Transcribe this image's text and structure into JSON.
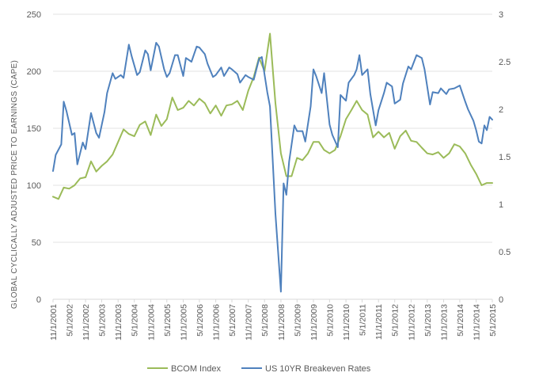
{
  "chart_data": {
    "type": "line",
    "ylabel": "GLOBAL CYCLICALLY ADJUSTED PRICE TO EARNINGS (CAPE)",
    "ylim": [
      0,
      250
    ],
    "y_ticks": [
      "0",
      "50",
      "100",
      "150",
      "200",
      "250"
    ],
    "y2lim": [
      0,
      3
    ],
    "y2_ticks": [
      "0",
      "0.5",
      "1",
      "1.5",
      "2",
      "2.5",
      "3"
    ],
    "x_range": [
      "2001-11-01",
      "2015-05-01"
    ],
    "x_tick_labels": [
      "11/1/2001",
      "5/1/2002",
      "11/1/2002",
      "5/1/2003",
      "11/1/2003",
      "5/1/2004",
      "11/1/2004",
      "5/1/2005",
      "11/1/2005",
      "5/1/2006",
      "11/1/2006",
      "5/1/2007",
      "11/1/2007",
      "5/1/2008",
      "11/1/2008",
      "5/1/2009",
      "11/1/2009",
      "5/1/2010",
      "11/1/2010",
      "5/1/2011",
      "11/1/2011",
      "5/1/2012",
      "11/1/2012",
      "5/1/2013",
      "11/1/2013",
      "5/1/2014",
      "11/1/2014",
      "5/1/2015"
    ],
    "grid": true,
    "legend_position": "bottom",
    "series": [
      {
        "name": "BCOM Index",
        "axis": "left",
        "color": "#9bbb59",
        "points": [
          [
            "2001-11-01",
            90
          ],
          [
            "2002-01-01",
            88
          ],
          [
            "2002-03-01",
            98
          ],
          [
            "2002-05-01",
            97
          ],
          [
            "2002-07-01",
            100
          ],
          [
            "2002-09-01",
            106
          ],
          [
            "2002-11-01",
            107
          ],
          [
            "2003-01-01",
            121
          ],
          [
            "2003-03-01",
            112
          ],
          [
            "2003-05-01",
            117
          ],
          [
            "2003-07-01",
            121
          ],
          [
            "2003-09-01",
            127
          ],
          [
            "2003-11-01",
            138
          ],
          [
            "2004-01-01",
            149
          ],
          [
            "2004-03-01",
            145
          ],
          [
            "2004-05-01",
            143
          ],
          [
            "2004-07-01",
            153
          ],
          [
            "2004-09-01",
            156
          ],
          [
            "2004-11-01",
            144
          ],
          [
            "2005-01-01",
            162
          ],
          [
            "2005-03-01",
            152
          ],
          [
            "2005-05-01",
            158
          ],
          [
            "2005-07-01",
            177
          ],
          [
            "2005-09-01",
            166
          ],
          [
            "2005-11-01",
            168
          ],
          [
            "2006-01-01",
            174
          ],
          [
            "2006-03-01",
            170
          ],
          [
            "2006-05-01",
            176
          ],
          [
            "2006-07-01",
            172
          ],
          [
            "2006-09-01",
            163
          ],
          [
            "2006-11-01",
            170
          ],
          [
            "2007-01-01",
            161
          ],
          [
            "2007-03-01",
            170
          ],
          [
            "2007-05-01",
            171
          ],
          [
            "2007-07-01",
            174
          ],
          [
            "2007-09-01",
            166
          ],
          [
            "2007-11-01",
            183
          ],
          [
            "2008-01-01",
            195
          ],
          [
            "2008-03-01",
            212
          ],
          [
            "2008-05-01",
            200
          ],
          [
            "2008-07-01",
            233
          ],
          [
            "2008-09-01",
            172
          ],
          [
            "2008-11-01",
            128
          ],
          [
            "2009-01-01",
            108
          ],
          [
            "2009-03-01",
            108
          ],
          [
            "2009-05-01",
            124
          ],
          [
            "2009-07-01",
            122
          ],
          [
            "2009-09-01",
            128
          ],
          [
            "2009-11-01",
            138
          ],
          [
            "2010-01-01",
            138
          ],
          [
            "2010-03-01",
            131
          ],
          [
            "2010-05-01",
            128
          ],
          [
            "2010-07-01",
            131
          ],
          [
            "2010-09-01",
            143
          ],
          [
            "2010-11-01",
            158
          ],
          [
            "2011-01-01",
            166
          ],
          [
            "2011-03-01",
            174
          ],
          [
            "2011-05-01",
            166
          ],
          [
            "2011-07-01",
            162
          ],
          [
            "2011-09-01",
            142
          ],
          [
            "2011-11-01",
            147
          ],
          [
            "2012-01-01",
            142
          ],
          [
            "2012-03-01",
            146
          ],
          [
            "2012-05-01",
            132
          ],
          [
            "2012-07-01",
            143
          ],
          [
            "2012-09-01",
            148
          ],
          [
            "2012-11-01",
            139
          ],
          [
            "2013-01-01",
            138
          ],
          [
            "2013-03-01",
            133
          ],
          [
            "2013-05-01",
            128
          ],
          [
            "2013-07-01",
            127
          ],
          [
            "2013-09-01",
            129
          ],
          [
            "2013-11-01",
            124
          ],
          [
            "2014-01-01",
            128
          ],
          [
            "2014-03-01",
            136
          ],
          [
            "2014-05-01",
            134
          ],
          [
            "2014-07-01",
            128
          ],
          [
            "2014-09-01",
            118
          ],
          [
            "2014-11-01",
            110
          ],
          [
            "2015-01-01",
            100
          ],
          [
            "2015-03-01",
            102
          ],
          [
            "2015-05-01",
            102
          ]
        ]
      },
      {
        "name": "US 10YR Breakeven Rates",
        "axis": "right",
        "color": "#4f81bd",
        "points": [
          [
            "2001-11-01",
            1.35
          ],
          [
            "2001-12-01",
            1.52
          ],
          [
            "2002-02-01",
            1.63
          ],
          [
            "2002-03-01",
            2.08
          ],
          [
            "2002-04-01",
            1.98
          ],
          [
            "2002-06-01",
            1.73
          ],
          [
            "2002-07-01",
            1.75
          ],
          [
            "2002-08-01",
            1.42
          ],
          [
            "2002-10-01",
            1.65
          ],
          [
            "2002-11-01",
            1.58
          ],
          [
            "2003-01-01",
            1.96
          ],
          [
            "2003-03-01",
            1.75
          ],
          [
            "2003-04-01",
            1.7
          ],
          [
            "2003-06-01",
            1.97
          ],
          [
            "2003-07-01",
            2.17
          ],
          [
            "2003-09-01",
            2.38
          ],
          [
            "2003-10-01",
            2.32
          ],
          [
            "2003-12-01",
            2.36
          ],
          [
            "2004-01-01",
            2.33
          ],
          [
            "2004-03-01",
            2.68
          ],
          [
            "2004-04-01",
            2.56
          ],
          [
            "2004-06-01",
            2.36
          ],
          [
            "2004-07-01",
            2.39
          ],
          [
            "2004-09-01",
            2.62
          ],
          [
            "2004-10-01",
            2.58
          ],
          [
            "2004-11-01",
            2.41
          ],
          [
            "2005-01-01",
            2.7
          ],
          [
            "2005-02-01",
            2.66
          ],
          [
            "2005-04-01",
            2.42
          ],
          [
            "2005-05-01",
            2.34
          ],
          [
            "2005-06-01",
            2.38
          ],
          [
            "2005-08-01",
            2.57
          ],
          [
            "2005-09-01",
            2.57
          ],
          [
            "2005-11-01",
            2.35
          ],
          [
            "2005-12-01",
            2.54
          ],
          [
            "2006-02-01",
            2.5
          ],
          [
            "2006-04-01",
            2.66
          ],
          [
            "2006-05-01",
            2.65
          ],
          [
            "2006-07-01",
            2.58
          ],
          [
            "2006-08-01",
            2.48
          ],
          [
            "2006-10-01",
            2.34
          ],
          [
            "2006-11-01",
            2.36
          ],
          [
            "2007-01-01",
            2.44
          ],
          [
            "2007-02-01",
            2.35
          ],
          [
            "2007-04-01",
            2.44
          ],
          [
            "2007-05-01",
            2.42
          ],
          [
            "2007-07-01",
            2.37
          ],
          [
            "2007-08-01",
            2.28
          ],
          [
            "2007-10-01",
            2.36
          ],
          [
            "2007-11-01",
            2.34
          ],
          [
            "2008-01-01",
            2.31
          ],
          [
            "2008-03-01",
            2.53
          ],
          [
            "2008-04-01",
            2.55
          ],
          [
            "2008-06-01",
            2.18
          ],
          [
            "2008-07-01",
            2.03
          ],
          [
            "2008-09-01",
            0.9
          ],
          [
            "2008-11-01",
            0.08
          ],
          [
            "2008-12-01",
            1.22
          ],
          [
            "2009-01-01",
            1.1
          ],
          [
            "2009-02-01",
            1.45
          ],
          [
            "2009-04-01",
            1.83
          ],
          [
            "2009-05-01",
            1.77
          ],
          [
            "2009-07-01",
            1.77
          ],
          [
            "2009-08-01",
            1.66
          ],
          [
            "2009-10-01",
            2.03
          ],
          [
            "2009-11-01",
            2.42
          ],
          [
            "2009-12-01",
            2.35
          ],
          [
            "2010-02-01",
            2.17
          ],
          [
            "2010-03-01",
            2.38
          ],
          [
            "2010-05-01",
            1.84
          ],
          [
            "2010-06-01",
            1.73
          ],
          [
            "2010-08-01",
            1.6
          ],
          [
            "2010-09-01",
            2.15
          ],
          [
            "2010-11-01",
            2.09
          ],
          [
            "2010-12-01",
            2.28
          ],
          [
            "2011-02-01",
            2.36
          ],
          [
            "2011-03-01",
            2.42
          ],
          [
            "2011-04-01",
            2.57
          ],
          [
            "2011-05-01",
            2.36
          ],
          [
            "2011-07-01",
            2.42
          ],
          [
            "2011-08-01",
            2.16
          ],
          [
            "2011-10-01",
            1.83
          ],
          [
            "2011-11-01",
            1.99
          ],
          [
            "2012-01-01",
            2.17
          ],
          [
            "2012-02-01",
            2.28
          ],
          [
            "2012-04-01",
            2.24
          ],
          [
            "2012-05-01",
            2.06
          ],
          [
            "2012-07-01",
            2.1
          ],
          [
            "2012-08-01",
            2.27
          ],
          [
            "2012-10-01",
            2.45
          ],
          [
            "2012-11-01",
            2.42
          ],
          [
            "2013-01-01",
            2.57
          ],
          [
            "2013-03-01",
            2.54
          ],
          [
            "2013-04-01",
            2.42
          ],
          [
            "2013-06-01",
            2.05
          ],
          [
            "2013-07-01",
            2.18
          ],
          [
            "2013-09-01",
            2.17
          ],
          [
            "2013-10-01",
            2.22
          ],
          [
            "2013-12-01",
            2.16
          ],
          [
            "2014-01-01",
            2.21
          ],
          [
            "2014-03-01",
            2.22
          ],
          [
            "2014-05-01",
            2.25
          ],
          [
            "2014-07-01",
            2.08
          ],
          [
            "2014-08-01",
            2.0
          ],
          [
            "2014-10-01",
            1.88
          ],
          [
            "2014-11-01",
            1.78
          ],
          [
            "2014-12-01",
            1.66
          ],
          [
            "2015-01-01",
            1.64
          ],
          [
            "2015-02-01",
            1.83
          ],
          [
            "2015-03-01",
            1.78
          ],
          [
            "2015-04-01",
            1.92
          ],
          [
            "2015-05-01",
            1.89
          ]
        ]
      }
    ]
  }
}
